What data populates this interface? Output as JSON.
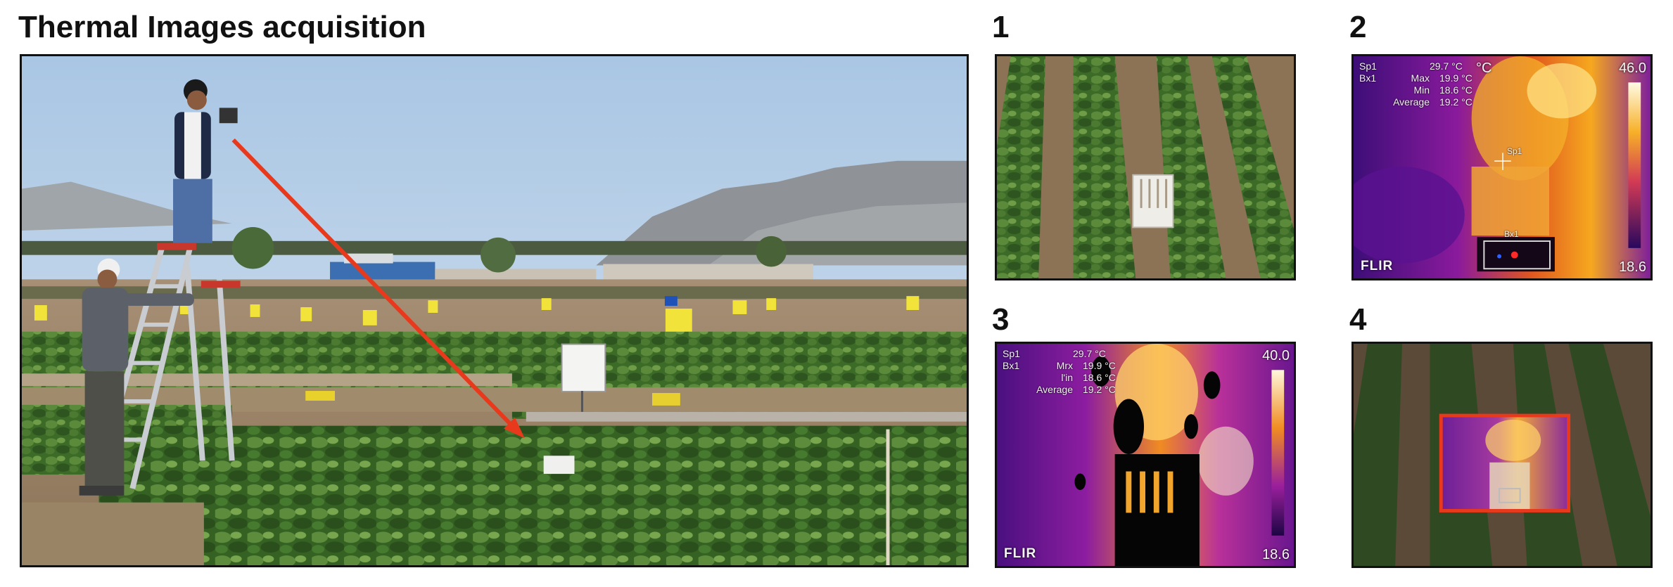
{
  "title": "Thermal Images acquisition",
  "panels": [
    {
      "number": "1",
      "kind": "rgb-crop-with-reference-box"
    },
    {
      "number": "2",
      "kind": "thermal-raw"
    },
    {
      "number": "3",
      "kind": "thermal-processed"
    },
    {
      "number": "4",
      "kind": "overlay"
    }
  ],
  "thermal": {
    "spot_label": "Sp1",
    "box_label": "Bx1",
    "spot_value": "29.7 °C",
    "max_label": "Max",
    "max_value": "19.9 °C",
    "min_label": "Min",
    "min_value": "18.6 °C",
    "avg_label": "Average",
    "avg_value": "19.2 °C",
    "unit": "°C",
    "scale_max": "46.0",
    "scale_min": "18.6",
    "brand": "FLIR"
  },
  "panel3": {
    "max_label": "Mrx",
    "min_label": "l'in",
    "box_label": "Bx1",
    "scale_max": "40.0"
  },
  "colors": {
    "arrow": "#e8391c",
    "overlay_box": "#e8391c",
    "sky": "#b9d2e8",
    "foliage": "#3d6a2a",
    "soil": "#8f7a60"
  }
}
